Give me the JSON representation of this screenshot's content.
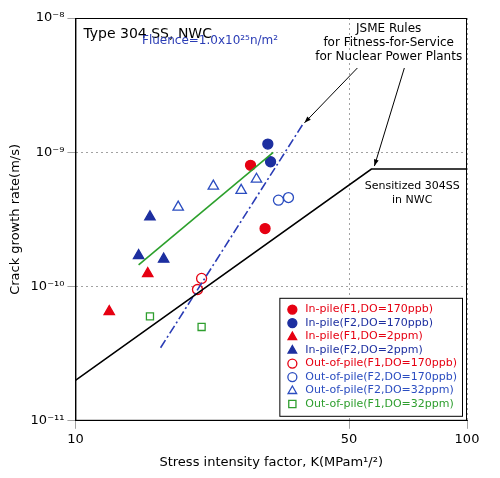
{
  "chart_data": {
    "type": "scatter",
    "title": "Type 304 SS, NWC",
    "x_label": "Stress intensity factor, K(MPam¹/²)",
    "y_label": "Crack growth rate(m/s)",
    "log": true,
    "grid": true,
    "legend": "lower right",
    "xlim": [
      10,
      100
    ],
    "ylim": [
      1e-11,
      1e-08
    ],
    "xticks": [
      10,
      50,
      100
    ],
    "yticks": [
      {
        "value": 1e-11,
        "label": "10⁻¹¹"
      },
      {
        "value": 1e-10,
        "label": "10⁻¹⁰"
      },
      {
        "value": 1e-09,
        "label": "10⁻⁹"
      },
      {
        "value": 1e-08,
        "label": "10⁻⁸"
      }
    ],
    "annotations": [
      {
        "text": [
          "JSME Rules",
          "for Fitness-for-Service",
          "for Nuclear Power Plants"
        ],
        "color": "#000000"
      },
      {
        "text": [
          "Fluence=1.0x10²⁵n/m²"
        ],
        "color": "#2a3cb5"
      },
      {
        "text": [
          "Sensitized 304SS",
          "in NWC"
        ],
        "color": "#000000"
      }
    ],
    "series": [
      {
        "type": "line",
        "color": "#000000",
        "line_style": "solid",
        "x": [
          10,
          57,
          100
        ],
        "values": [
          2e-11,
          7.5e-10,
          7.5e-10
        ]
      },
      {
        "type": "line",
        "color": "#2a3cb5",
        "line_style": "dashdot",
        "x": [
          16.5,
          38
        ],
        "values": [
          3.5e-11,
          1.6e-09
        ]
      },
      {
        "type": "line",
        "color": "#2ca02c",
        "line_style": "solid",
        "x": [
          14.5,
          32
        ],
        "values": [
          1.45e-10,
          1e-09
        ]
      },
      {
        "name": "In-pile(F1,DO=170ppb)",
        "color": "#e60012",
        "marker": "circle",
        "x": [
          28,
          30.5
        ],
        "values": [
          8e-10,
          2.7e-10
        ]
      },
      {
        "name": "In-pile(F2,DO=170ppb)",
        "color": "#1d2fa0",
        "marker": "circle",
        "x": [
          31,
          31.5
        ],
        "values": [
          1.15e-09,
          8.5e-10
        ]
      },
      {
        "name": "In-pile(F1,DO=2ppm)",
        "color": "#e60012",
        "marker": "triangle",
        "x": [
          12.2,
          15.3
        ],
        "values": [
          6.5e-11,
          1.25e-10
        ]
      },
      {
        "name": "In-pile(F2,DO=2ppm)",
        "color": "#1d2fa0",
        "marker": "triangle",
        "x": [
          14.5,
          15.5,
          16.8
        ],
        "values": [
          1.7e-10,
          3.3e-10,
          1.6e-10
        ]
      },
      {
        "name": "Out-of-pile(F1,DO=170ppb)",
        "color": "#e60012",
        "marker": "open_circle",
        "x": [
          20.5,
          21
        ],
        "values": [
          9.5e-11,
          1.15e-10
        ]
      },
      {
        "name": "Out-of-pile(F2,DO=170ppb)",
        "color": "#2b4dc0",
        "marker": "open_circle",
        "x": [
          33,
          35
        ],
        "values": [
          4.4e-10,
          4.6e-10
        ]
      },
      {
        "name": "Out-of-pile(F2,DO=32ppm)",
        "color": "#2b4dc0",
        "marker": "open_triangle",
        "x": [
          18.3,
          22.5,
          26.5,
          29
        ],
        "values": [
          3.9e-10,
          5.6e-10,
          5.2e-10,
          6.3e-10
        ]
      },
      {
        "name": "Out-of-pile(F1,DO=32ppm)",
        "color": "#2e9e2e",
        "marker": "open_square",
        "x": [
          15.5,
          21
        ],
        "values": [
          6e-11,
          5e-11
        ]
      }
    ]
  }
}
